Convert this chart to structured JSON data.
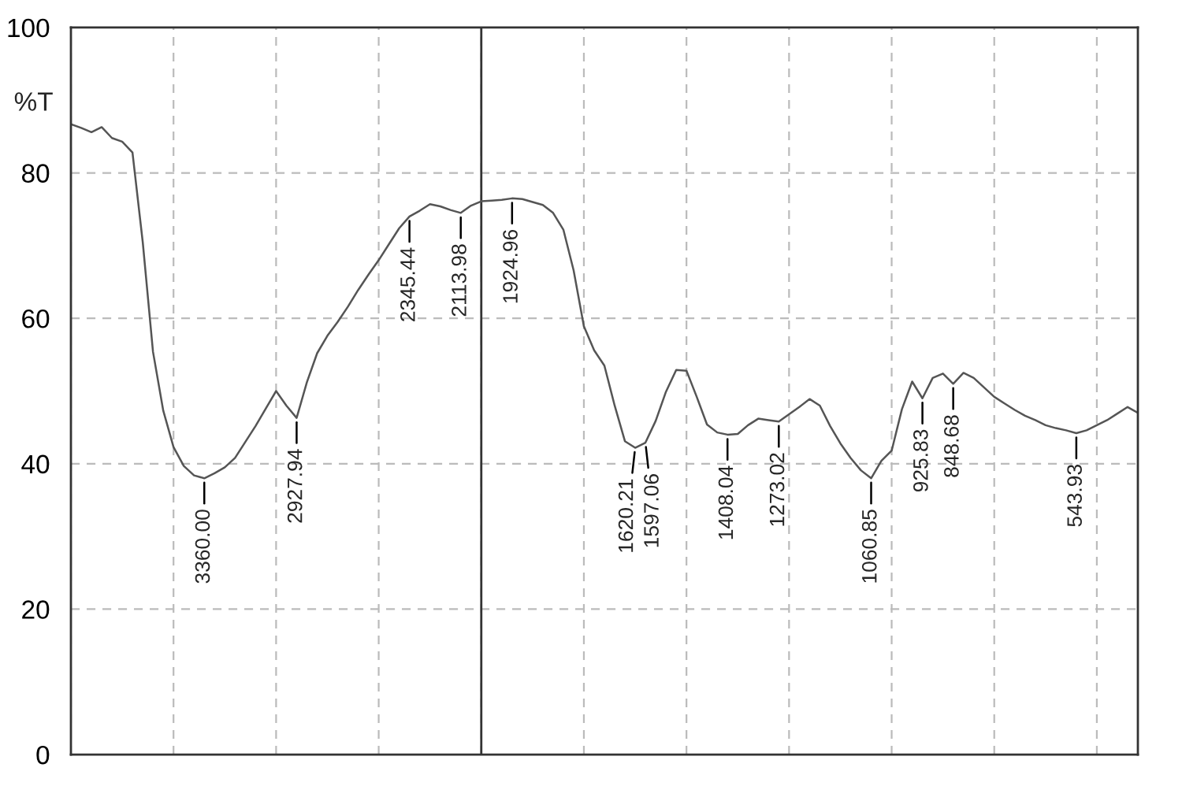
{
  "chart_data": {
    "type": "line",
    "ylabel": "%T",
    "ylim": [
      0,
      100
    ],
    "yticks": [
      0,
      20,
      40,
      60,
      80,
      100
    ],
    "grid": true,
    "tick_labels": "y",
    "categories": [
      null,
      null,
      null,
      null,
      null,
      null,
      null,
      null,
      null,
      null,
      null,
      null,
      null,
      null,
      null,
      null,
      null,
      null,
      null,
      null,
      null,
      null,
      null,
      null,
      null,
      null,
      null,
      null,
      null,
      null,
      null,
      null,
      null,
      null,
      null,
      null,
      null,
      null,
      null,
      null,
      null,
      null,
      null,
      null,
      null,
      null,
      null,
      null,
      null,
      null,
      null,
      null,
      null,
      null,
      null,
      null,
      null,
      null,
      null,
      null,
      null,
      null,
      null,
      null,
      null,
      null,
      null,
      null,
      null,
      null,
      null,
      null,
      null,
      null,
      null,
      null,
      null,
      null,
      null,
      null,
      null,
      null,
      null,
      null,
      null,
      null,
      null,
      null,
      null,
      null,
      null,
      null,
      null,
      null,
      null,
      null,
      null,
      null,
      null,
      null,
      null,
      null,
      null,
      null,
      null
    ],
    "series": [
      {
        "color": "#555555",
        "values": [
          86.7,
          86.2,
          85.6,
          86.3,
          84.8,
          84.3,
          82.8,
          70.5,
          55.4,
          47.3,
          42.3,
          39.7,
          38.4,
          38.0,
          38.7,
          39.5,
          40.8,
          43,
          45.2,
          47.6,
          50,
          48,
          46.3,
          51.2,
          55.2,
          57.6,
          59.5,
          61.6,
          63.9,
          66,
          68,
          70.2,
          72.4,
          74.0,
          74.8,
          75.7,
          75.4,
          74.9,
          74.5,
          75.5,
          76.1,
          76.2,
          76.3,
          76.5,
          76.4,
          76.0,
          75.6,
          74.5,
          72.2,
          66.6,
          58.9,
          55.6,
          53.5,
          48.0,
          43.1,
          42.2,
          42.9,
          45.9,
          49.9,
          52.9,
          52.8,
          49.2,
          45.4,
          44.3,
          44.0,
          44.1,
          45.3,
          46.2,
          46.0,
          45.8,
          46.8,
          47.8,
          48.9,
          48.0,
          45.2,
          42.8,
          40.8,
          39.1,
          38.0,
          40.4,
          41.8,
          47.5,
          51.3,
          49.0,
          51.8,
          52.4,
          51.0,
          52.5,
          51.8,
          50.5,
          49.2,
          48.3,
          47.4,
          46.6,
          46.0,
          45.3,
          44.9,
          44.6,
          44.2,
          44.6,
          45.3,
          46.0,
          46.9,
          47.8,
          47
        ]
      }
    ],
    "annotations": [
      {
        "text": "3360.00",
        "y": 38.0
      },
      {
        "text": "2927.94",
        "y": 46.3
      },
      {
        "text": "2345.44",
        "y": 74.0
      },
      {
        "text": "2113.98",
        "y": 74.5
      },
      {
        "text": "1924.96",
        "y": 76.5
      },
      {
        "text": "1620.21",
        "y": 42.2
      },
      {
        "text": "1597.06",
        "y": 42.9
      },
      {
        "text": "1408.04",
        "y": 44.0
      },
      {
        "text": "1273.02",
        "y": 45.8
      },
      {
        "text": "1060.85",
        "y": 38.0
      },
      {
        "text": "925.83",
        "y": 49.0
      },
      {
        "text": "848.68",
        "y": 51.0
      },
      {
        "text": "543.93",
        "y": 44.2
      }
    ]
  }
}
